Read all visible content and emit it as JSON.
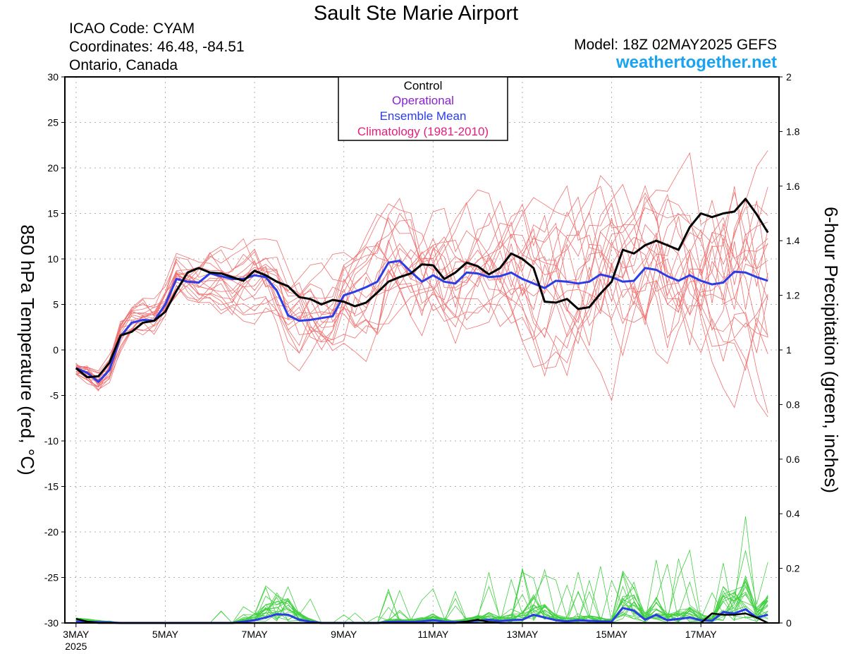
{
  "header": {
    "title": "Sault Ste Marie Airport",
    "icao": "ICAO Code: CYAM",
    "coords": "Coordinates: 46.48, -84.51",
    "region": "Ontario, Canada",
    "model": "Model: 18Z 02MAY2025 GEFS",
    "site": "weathertogether.net"
  },
  "legend": {
    "control": "Control",
    "operational": "Operational",
    "ensemble_mean": "Ensemble Mean",
    "climatology": "Climatology (1981-2010)"
  },
  "colors": {
    "control": "#000000",
    "operational": "#8a22cc",
    "ensemble_mean": "#2a3de6",
    "climatology": "#e0207e",
    "members_temp": "#f07070",
    "members_precip": "#40d040",
    "site": "#1aa3f0"
  },
  "chart_data": {
    "type": "line",
    "ylabel": "850 hPa Temperature (red, °C)",
    "y2label": "6-hour Precipitation (green, inches)",
    "ylim": [
      -30,
      30
    ],
    "y2lim": [
      0,
      2
    ],
    "yticks": [
      "30",
      "25",
      "20",
      "15",
      "10",
      "5",
      "0",
      "-5",
      "-10",
      "-15",
      "-20",
      "-25",
      "-30"
    ],
    "y2ticks": [
      "2",
      "1.8",
      "1.6",
      "1.4",
      "1.2",
      "1",
      "0.8",
      "0.6",
      "0.4",
      "0.2",
      "0"
    ],
    "xticks": [
      {
        "x": 0,
        "label": "3MAY",
        "year": "2025"
      },
      {
        "x": 2,
        "label": "5MAY"
      },
      {
        "x": 4,
        "label": "7MAY"
      },
      {
        "x": 6,
        "label": "9MAY"
      },
      {
        "x": 8,
        "label": "11MAY"
      },
      {
        "x": 10,
        "label": "13MAY"
      },
      {
        "x": 12,
        "label": "15MAY"
      },
      {
        "x": 14,
        "label": "17MAY"
      }
    ],
    "xlim": [
      -0.25,
      15.75
    ],
    "grid": true,
    "control_temp": [
      -2,
      -3,
      -2.9,
      -1.4,
      1.6,
      2,
      3,
      3.2,
      4.2,
      6.5,
      8.5,
      9,
      8.5,
      8.4,
      8,
      7.6,
      8.7,
      8.2,
      7.5,
      7,
      5.8,
      5.6,
      5,
      5.5,
      5.3,
      4.8,
      5.2,
      6.3,
      7.5,
      8,
      8.4,
      9.4,
      9.3,
      7.8,
      8.5,
      9.6,
      9.2,
      8.3,
      9,
      10.6,
      10,
      9,
      5.3,
      5.2,
      5.6,
      4.5,
      4.7,
      6.2,
      7.5,
      11,
      10.6,
      11.5,
      12,
      11.5,
      11,
      13.5,
      15,
      14.6,
      15,
      15.2,
      16.6,
      14.9,
      12.9
    ],
    "mean_temp": [
      -2,
      -2.5,
      -3.5,
      -2.2,
      1.5,
      3,
      3.3,
      3.2,
      5,
      7.8,
      7.5,
      7.4,
      8.4,
      8.1,
      7.8,
      7.8,
      8.2,
      8,
      6.5,
      3.8,
      3.2,
      3.3,
      3.5,
      3.7,
      6,
      6.4,
      6.9,
      7.5,
      9.6,
      9.8,
      8.6,
      7.5,
      8.2,
      7.5,
      7.3,
      8.5,
      8.4,
      8,
      8.1,
      8.5,
      7.8,
      7.3,
      6.8,
      7.6,
      7.5,
      7.3,
      7.5,
      8.3,
      8,
      7.5,
      7.6,
      9,
      8.8,
      8.1,
      7.6,
      8.2,
      7.6,
      7.2,
      7.4,
      8.6,
      8.5,
      8,
      7.6
    ],
    "control_precip": [
      0.015,
      0.005,
      0,
      0,
      0,
      0,
      0,
      0,
      0,
      0,
      0,
      0,
      0,
      0,
      0,
      0,
      0,
      0,
      0,
      0,
      0,
      0,
      0,
      0,
      0,
      0,
      0,
      0,
      0,
      0,
      0,
      0,
      0,
      0,
      0,
      0.005,
      0.012,
      0.003,
      0,
      0,
      0,
      0,
      0,
      0,
      0,
      0,
      0,
      0,
      0,
      0,
      0,
      0,
      0,
      0,
      0,
      0,
      0,
      0.035,
      0.03,
      0.03,
      0.035,
      0.02,
      0
    ],
    "mean_precip": [
      0.005,
      0.004,
      0.003,
      0.002,
      0,
      0,
      0,
      0,
      0,
      0,
      0,
      0,
      0,
      0,
      0,
      0.005,
      0.01,
      0.02,
      0.032,
      0.03,
      0.012,
      0.005,
      0,
      0,
      0,
      0,
      0,
      0,
      0.004,
      0.005,
      0.004,
      0.006,
      0.01,
      0.005,
      0.003,
      0.005,
      0.008,
      0.012,
      0.007,
      0.01,
      0.012,
      0.03,
      0.02,
      0.01,
      0.006,
      0.01,
      0.008,
      0.006,
      0.005,
      0.055,
      0.045,
      0.012,
      0.03,
      0.01,
      0.015,
      0.02,
      0.01,
      0.008,
      0.04,
      0.035,
      0.05,
      0.02,
      0.03
    ]
  }
}
